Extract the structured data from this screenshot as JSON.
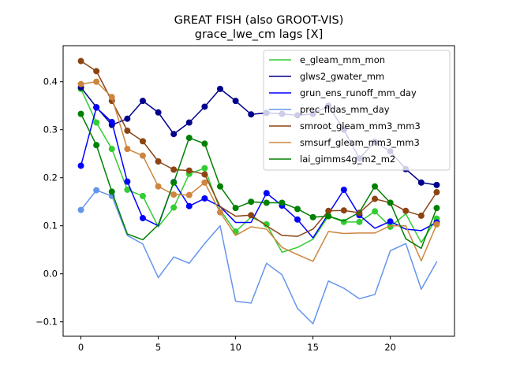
{
  "chart_data": {
    "type": "line",
    "title": "GREAT FISH (also GROOT-VIS)",
    "subtitle": "grace_lwe_cm lags [X]",
    "xlabel": "",
    "ylabel": "",
    "xlim": [
      -1.15,
      24.15
    ],
    "ylim": [
      -0.13,
      0.475
    ],
    "xticks": [
      0,
      5,
      10,
      15,
      20
    ],
    "yticks": [
      -0.1,
      0.0,
      0.1,
      0.2,
      0.3,
      0.4
    ],
    "ytick_labels": [
      "−0.1",
      "0.0",
      "0.1",
      "0.2",
      "0.3",
      "0.4"
    ],
    "grid": false,
    "legend_position": "upper-right",
    "x": [
      0,
      1,
      2,
      3,
      4,
      5,
      6,
      7,
      8,
      9,
      10,
      11,
      12,
      13,
      14,
      15,
      16,
      17,
      18,
      19,
      20,
      21,
      22,
      23
    ],
    "series": [
      {
        "name": "e_gleam_mm_mon",
        "color": "#32cd32",
        "marker_color": "#32cd32",
        "markers_at": [
          0,
          1,
          2,
          3,
          4,
          6,
          7,
          8,
          10,
          12,
          16,
          17,
          18,
          19,
          20,
          23
        ],
        "values": [
          0.385,
          0.315,
          0.26,
          0.175,
          0.162,
          0.098,
          0.138,
          0.208,
          0.22,
          0.133,
          0.088,
          0.118,
          0.103,
          0.045,
          0.055,
          0.072,
          0.12,
          0.108,
          0.108,
          0.13,
          0.098,
          0.125,
          0.065,
          0.115
        ]
      },
      {
        "name": "glws2_gwater_mm",
        "color": "#00008b",
        "marker_color": "#00008b",
        "markers_at": [
          0,
          1,
          2,
          3,
          4,
          5,
          6,
          7,
          8,
          9,
          10,
          11,
          12,
          13,
          14,
          15,
          16,
          17,
          18,
          19,
          20,
          21,
          22,
          23
        ],
        "values": [
          0.388,
          0.347,
          0.31,
          0.323,
          0.36,
          0.336,
          0.291,
          0.315,
          0.348,
          0.385,
          0.36,
          0.332,
          0.335,
          0.333,
          0.33,
          0.333,
          0.35,
          0.3,
          0.24,
          0.275,
          0.255,
          0.218,
          0.19,
          0.185
        ]
      },
      {
        "name": "grun_ens_runoff_mm_day",
        "color": "#0000ff",
        "marker_color": "#0000ff",
        "markers_at": [
          0,
          1,
          2,
          3,
          4,
          6,
          7,
          8,
          12,
          13,
          14,
          17,
          18,
          20,
          23
        ],
        "values": [
          0.225,
          0.346,
          0.316,
          0.192,
          0.116,
          0.1,
          0.191,
          0.141,
          0.157,
          0.14,
          0.107,
          0.107,
          0.168,
          0.142,
          0.113,
          0.075,
          0.125,
          0.175,
          0.122,
          0.095,
          0.109,
          0.093,
          0.09,
          0.107
        ]
      },
      {
        "name": "prec_fldas_mm_day",
        "color": "#6495ed",
        "marker_color": "#6495ed",
        "markers_at": [
          0,
          1,
          2
        ],
        "values": [
          0.133,
          0.174,
          0.162,
          0.08,
          0.062,
          -0.008,
          0.035,
          0.022,
          0.063,
          0.1,
          -0.057,
          -0.061,
          0.022,
          -0.002,
          -0.072,
          -0.104,
          -0.015,
          -0.03,
          -0.052,
          -0.043,
          0.048,
          0.063,
          -0.032,
          0.025
        ]
      },
      {
        "name": "smroot_gleam_mm3_mm3",
        "color": "#8b4513",
        "marker_color": "#8b4513",
        "markers_at": [
          0,
          1,
          2,
          3,
          4,
          5,
          6,
          7,
          8,
          11,
          16,
          17,
          18,
          19,
          20,
          21,
          22,
          23
        ],
        "values": [
          0.443,
          0.422,
          0.36,
          0.298,
          0.276,
          0.234,
          0.217,
          0.215,
          0.207,
          0.14,
          0.12,
          0.122,
          0.1,
          0.08,
          0.078,
          0.093,
          0.131,
          0.132,
          0.127,
          0.156,
          0.148,
          0.131,
          0.121,
          0.17
        ]
      },
      {
        "name": "smsurf_gleam_mm3_mm3",
        "color": "#cd853f",
        "marker_color": "#cd853f",
        "markers_at": [
          0,
          1,
          2,
          3,
          4,
          5,
          6,
          7,
          8,
          9,
          23
        ],
        "values": [
          0.395,
          0.4,
          0.368,
          0.26,
          0.246,
          0.182,
          0.165,
          0.164,
          0.19,
          0.128,
          0.08,
          0.098,
          0.093,
          0.055,
          0.04,
          0.026,
          0.088,
          0.084,
          0.085,
          0.085,
          0.1,
          0.1,
          0.027,
          0.103
        ]
      },
      {
        "name": "lai_gimms4g_m2_m2",
        "color": "#008000",
        "marker_color": "#008000",
        "markers_at": [
          0,
          1,
          2,
          6,
          7,
          8,
          9,
          10,
          11,
          12,
          13,
          14,
          15,
          16,
          19,
          20,
          23
        ],
        "values": [
          0.333,
          0.268,
          0.171,
          0.083,
          0.071,
          0.102,
          0.19,
          0.283,
          0.271,
          0.182,
          0.137,
          0.15,
          0.148,
          0.148,
          0.135,
          0.118,
          0.12,
          0.11,
          0.128,
          0.182,
          0.148,
          0.073,
          0.053,
          0.137
        ]
      }
    ]
  }
}
